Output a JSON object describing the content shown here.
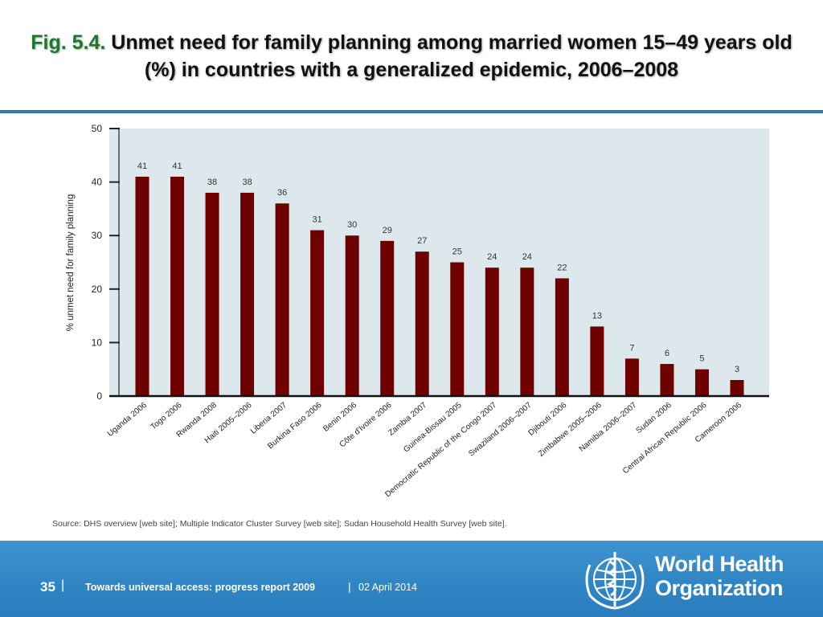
{
  "title": {
    "fig_label": "Fig. 5.4.",
    "text": "Unmet need for family planning among married women 15–49 years old (%) in countries with a generalized epidemic, 2006–2008"
  },
  "chart_data": {
    "type": "bar",
    "ylabel": "% unmet need for family planning",
    "ylim": [
      0,
      50
    ],
    "yticks": [
      "0",
      "10",
      "20",
      "30",
      "40",
      "50"
    ],
    "grid": false,
    "categories": [
      "Uganda 2006",
      "Togo 2006",
      "Rwanda 2008",
      "Haiti 2005–2006",
      "Liberia 2007",
      "Burkina Faso 2006",
      "Benin 2006",
      "Côte d'Ivoire 2006",
      "Zambia 2007",
      "Guinea-Bissau 2005",
      "Democratic Republic of the Congo 2007",
      "Swaziland 2006–2007",
      "Djibouti 2006",
      "Zimbabwe 2005–2006",
      "Namibia 2006–2007",
      "Sudan 2006",
      "Central African Republic 2006",
      "Cameroon 2006"
    ],
    "values": [
      41,
      41,
      38,
      38,
      36,
      31,
      30,
      29,
      27,
      25,
      24,
      24,
      22,
      13,
      7,
      6,
      5,
      3
    ],
    "bar_color": "#6e0000",
    "plot_background": "#dce8eb"
  },
  "source": "Source: DHS overview [web site]; Multiple Indicator Cluster Survey [web site]; Sudan Household Health Survey [web site].",
  "footer": {
    "page_number": "35",
    "separator": "|",
    "report": "Towards universal access: progress report 2009",
    "date": "02 April 2014",
    "org_line1": "World Health",
    "org_line2": "Organization",
    "logo_icon": "who-emblem-icon",
    "background_color": "#2f84c3"
  }
}
